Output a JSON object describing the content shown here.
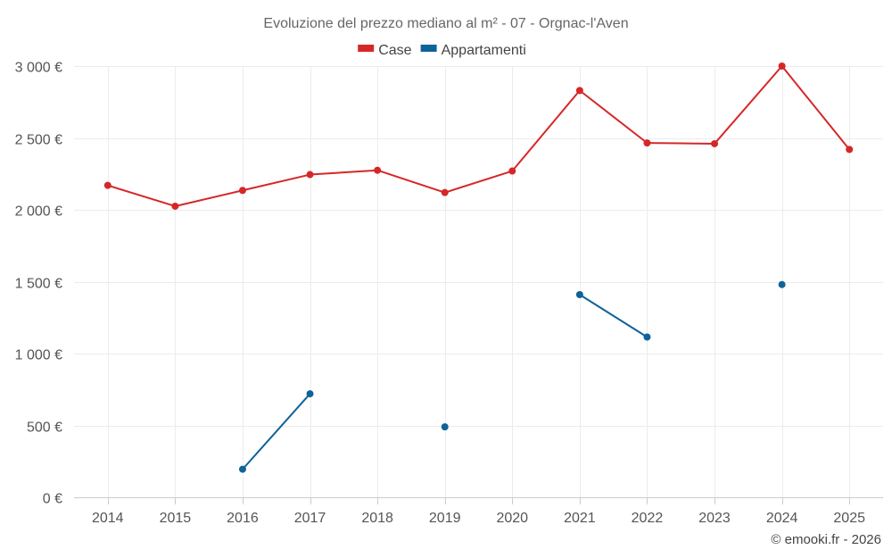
{
  "chart_data": {
    "type": "line",
    "title": "Evoluzione del prezzo mediano al m² - 07 - Orgnac-l'Aven",
    "x": [
      "2014",
      "2015",
      "2016",
      "2017",
      "2018",
      "2019",
      "2020",
      "2021",
      "2022",
      "2023",
      "2024",
      "2025"
    ],
    "ylim": [
      0,
      3000
    ],
    "yticks": [
      0,
      500,
      1000,
      1500,
      2000,
      2500,
      3000
    ],
    "ytick_labels": [
      "0 €",
      "500 €",
      "1 000 €",
      "1 500 €",
      "2 000 €",
      "2 500 €",
      "3 000 €"
    ],
    "grid": true,
    "legend_position": "top-center",
    "series": [
      {
        "name": "Case",
        "color": "#d62728",
        "values": [
          2170,
          2025,
          2135,
          2245,
          2275,
          2120,
          2270,
          2830,
          2465,
          2460,
          3000,
          2420
        ]
      },
      {
        "name": "Appartamenti",
        "color": "#0e6399",
        "values": [
          null,
          null,
          195,
          720,
          null,
          490,
          null,
          1410,
          1115,
          null,
          1480,
          null
        ]
      }
    ]
  },
  "credit": "© emooki.fr - 2026"
}
